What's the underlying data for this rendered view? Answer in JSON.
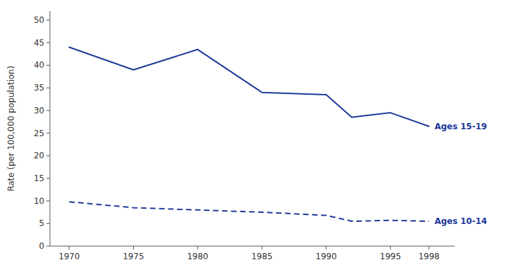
{
  "chart_data": {
    "type": "line",
    "y_label": "Rate (per 100,000 population)",
    "x": [
      1970,
      1975,
      1980,
      1985,
      1990,
      1992,
      1995,
      1998
    ],
    "xlim": [
      1968.5,
      2000
    ],
    "xticks": [
      1970,
      1975,
      1980,
      1985,
      1990,
      1995,
      1998
    ],
    "ylim": [
      0,
      52
    ],
    "yticks": [
      0,
      5,
      10,
      15,
      20,
      25,
      30,
      35,
      40,
      45,
      50
    ],
    "grid": false,
    "series": [
      {
        "name": "Ages 15-19",
        "color": "#1e3799",
        "line_style": "solid",
        "values": [
          44.0,
          39.0,
          43.5,
          34.0,
          33.5,
          28.5,
          29.5,
          26.5
        ]
      },
      {
        "name": "Ages 10-14",
        "color": "#1e3799",
        "line_style": "dashed",
        "values": [
          9.8,
          8.5,
          8.0,
          7.5,
          6.8,
          5.5,
          5.7,
          5.5
        ]
      }
    ]
  }
}
